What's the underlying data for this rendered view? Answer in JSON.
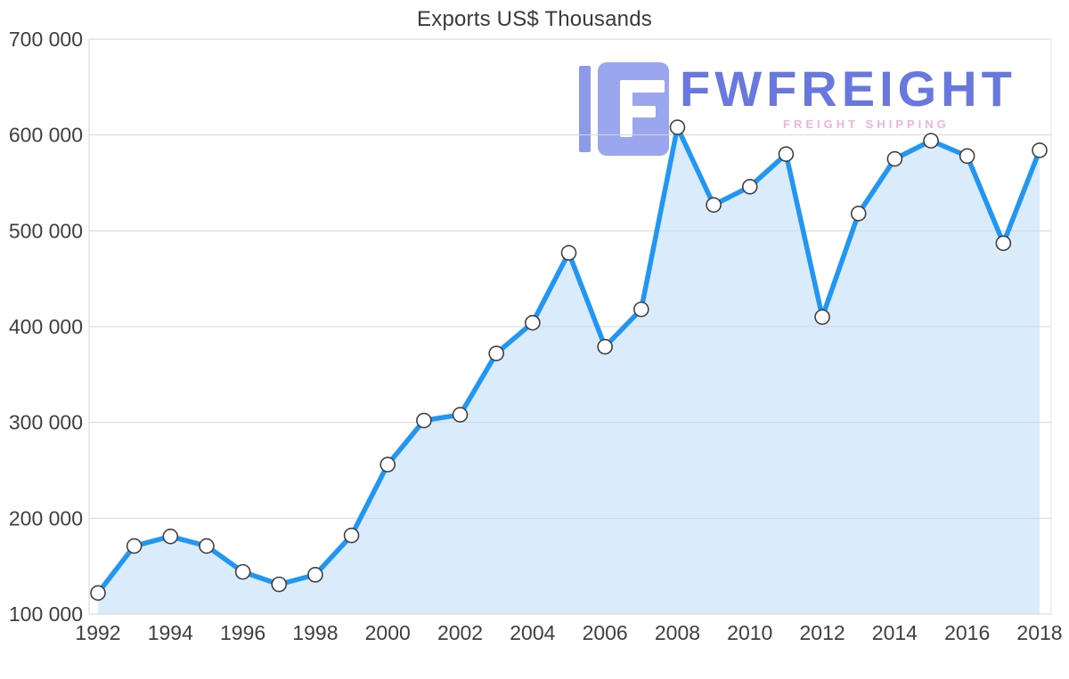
{
  "chart_data": {
    "type": "area",
    "title": "Exports US$ Thousands",
    "series_name": "Exports US$ Thousands",
    "x": [
      1992,
      1993,
      1994,
      1995,
      1996,
      1997,
      1998,
      1999,
      2000,
      2001,
      2002,
      2003,
      2004,
      2005,
      2006,
      2007,
      2008,
      2009,
      2010,
      2011,
      2012,
      2013,
      2014,
      2015,
      2016,
      2017,
      2018
    ],
    "values": [
      122000,
      171000,
      181000,
      171000,
      144000,
      131000,
      141000,
      182000,
      256000,
      302000,
      308000,
      372000,
      404000,
      477000,
      379000,
      418000,
      608000,
      527000,
      546000,
      580000,
      410000,
      518000,
      575000,
      594000,
      578000,
      487000,
      584000
    ],
    "ylim": [
      100000,
      700000
    ],
    "y_ticks": [
      100000,
      200000,
      300000,
      400000,
      500000,
      600000,
      700000
    ],
    "y_tick_labels": [
      "100 000",
      "200 000",
      "300 000",
      "400 000",
      "500 000",
      "600 000",
      "700 000"
    ],
    "x_tick_years": [
      1992,
      1994,
      1996,
      1998,
      2000,
      2002,
      2004,
      2006,
      2008,
      2010,
      2012,
      2014,
      2016,
      2018
    ],
    "grid": "horizontal",
    "legend": "none",
    "colors": {
      "line": "#2196F3",
      "fill": "#DAECFB",
      "grid": "#D6D6D6",
      "marker_fill": "#FFFFFF",
      "marker_stroke": "#404040",
      "text": "#3F3F3F"
    }
  },
  "watermark": {
    "brand": "FWFREIGHT",
    "subtitle": "FREIGHT SHIPPING"
  }
}
